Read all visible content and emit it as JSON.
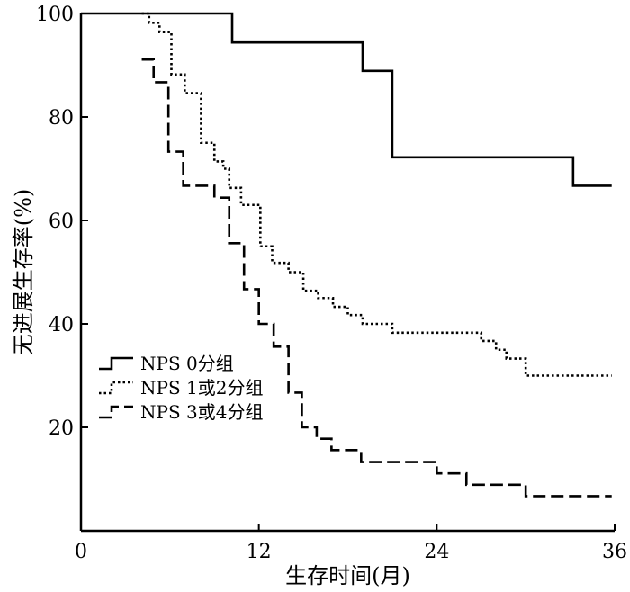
{
  "chart_data": {
    "type": "line",
    "step": true,
    "xlabel": "生存时间(月)",
    "ylabel": "无进展生存率(%)",
    "xlim": [
      0,
      36
    ],
    "ylim": [
      0,
      100
    ],
    "xticks": [
      0,
      12,
      24,
      36
    ],
    "yticks": [
      20,
      40,
      60,
      80,
      100
    ],
    "grid": false,
    "legend_position": "lower-left",
    "series": [
      {
        "name": "NPS 0分组",
        "style": "solid",
        "x": [
          0,
          10.2,
          19.0,
          21.0,
          33.2,
          35.8
        ],
        "y": [
          100,
          94.4,
          88.9,
          72.2,
          66.7,
          66.7
        ]
      },
      {
        "name": "NPS 1或2分组",
        "style": "dotted",
        "x": [
          4.1,
          4.6,
          5.3,
          6.1,
          7.0,
          8.1,
          9.0,
          9.6,
          10.0,
          10.8,
          12.1,
          12.9,
          14.0,
          15.0,
          16.0,
          17.0,
          18.0,
          19.0,
          21.0,
          27.0,
          28.0,
          28.7,
          30.0,
          35.8
        ],
        "y": [
          100,
          98.2,
          96.4,
          88.2,
          84.6,
          75.0,
          71.4,
          70.0,
          66.3,
          63.0,
          55.0,
          51.8,
          50.0,
          46.4,
          45.0,
          43.3,
          41.7,
          40.0,
          38.3,
          36.7,
          35.0,
          33.3,
          30.0,
          30.0
        ]
      },
      {
        "name": "NPS 3或4分组",
        "style": "dashed",
        "x": [
          4.1,
          4.9,
          5.9,
          6.9,
          9.0,
          10.0,
          11.0,
          12.0,
          13.0,
          14.0,
          14.9,
          15.9,
          16.9,
          18.9,
          24.0,
          26.0,
          30.0,
          35.8
        ],
        "y": [
          91.1,
          86.7,
          73.3,
          66.7,
          64.4,
          55.6,
          46.7,
          40.0,
          35.6,
          26.7,
          20.0,
          17.8,
          15.6,
          13.3,
          11.1,
          8.9,
          6.7,
          6.7
        ]
      }
    ]
  }
}
